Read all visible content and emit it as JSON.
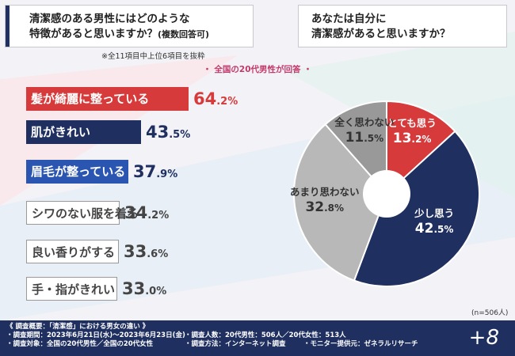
{
  "q1": {
    "title": "清潔感のある男性にはどのような\n特徴があると思いますか？",
    "title_suffix": "(複数回答可)"
  },
  "q2": {
    "title": "あなたは自分に\n清潔感があると思いますか？"
  },
  "note": "※全11項目中上位6項目を抜粋",
  "subtitle": "・ 全国の20代男性が回答 ・",
  "sample": "(n=506人)",
  "colors": {
    "navy": "#1e2f60",
    "red": "#d63a3a",
    "blue": "#2a55b0",
    "gray": "#b8b8b8",
    "gray_dark": "#999999"
  },
  "chart_data": [
    {
      "type": "bar",
      "title": "清潔感のある男性にはどのような特徴があると思いますか？(複数回答可)",
      "unit": "%",
      "categories": [
        "髪が綺麗に整っている",
        "肌がきれい",
        "眉毛が整っている",
        "シワのない服を着る",
        "良い香りがする",
        "手・指がきれい"
      ],
      "values": [
        64.2,
        43.5,
        37.9,
        34.2,
        33.6,
        33.0
      ],
      "labels": [
        "64.2%",
        "43.5%",
        "37.9%",
        "34.2%",
        "33.6%",
        "33.0%"
      ]
    },
    {
      "type": "pie",
      "title": "あなたは自分に清潔感があると思いますか？",
      "unit": "%",
      "categories": [
        "とても思う",
        "少し思う",
        "あまり思わない",
        "全く思わない"
      ],
      "values": [
        13.2,
        42.5,
        32.8,
        11.5
      ],
      "labels": [
        "13.2%",
        "42.5%",
        "32.8%",
        "11.5%"
      ]
    }
  ],
  "footer": {
    "summary": "《 調査概要：「清潔感」における男女の違い 》",
    "period": "・調査期間：2023年6月21日(水)〜2023年6月23日(金)",
    "target": "・調査対象：全国の20代男性／全国の20代女性",
    "count": "・調査人数：20代男性：506人／20代女性：513人",
    "method": "・調査方法：インターネット調査",
    "provider": "・モニター提供元：ゼネラルリサーチ",
    "logo": "+8"
  }
}
